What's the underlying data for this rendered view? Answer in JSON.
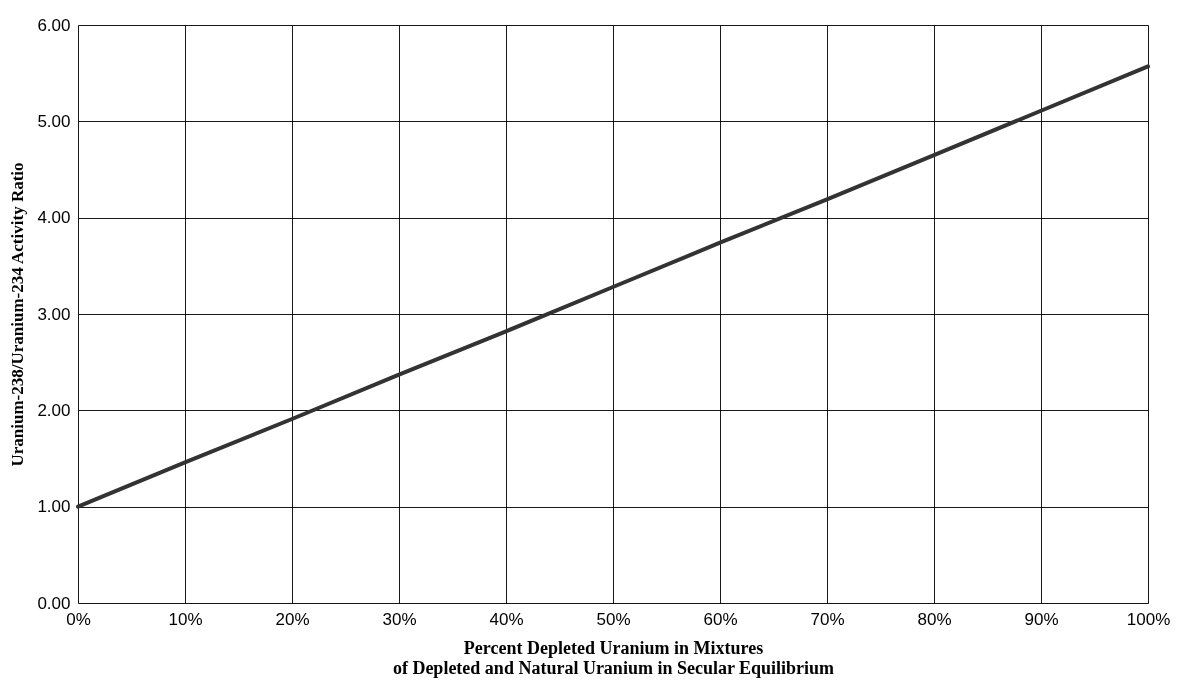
{
  "chart_data": {
    "type": "line",
    "xlabel": "Percent Depleted Uranium in Mixtures\nof Depleted and Natural Uranium in Secular Equilibrium",
    "ylabel": "Uranium-238/Uranium-234 Activity Ratio",
    "x": [
      0,
      10,
      20,
      30,
      40,
      50,
      60,
      70,
      80,
      90,
      100
    ],
    "series": [
      {
        "color": "#333333",
        "values": [
          1.0,
          1.46,
          1.91,
          2.37,
          2.82,
          3.28,
          3.74,
          4.19,
          4.65,
          5.11,
          5.57
        ]
      }
    ],
    "xlim": [
      0,
      100
    ],
    "xticks": [
      {
        "value": 0,
        "label": "0%"
      },
      {
        "value": 10,
        "label": "10%"
      },
      {
        "value": 20,
        "label": "20%"
      },
      {
        "value": 30,
        "label": "30%"
      },
      {
        "value": 40,
        "label": "40%"
      },
      {
        "value": 50,
        "label": "50%"
      },
      {
        "value": 60,
        "label": "60%"
      },
      {
        "value": 70,
        "label": "70%"
      },
      {
        "value": 80,
        "label": "80%"
      },
      {
        "value": 90,
        "label": "90%"
      },
      {
        "value": 100,
        "label": "100%"
      }
    ],
    "ylim": [
      0,
      6
    ],
    "yticks": [
      {
        "value": 0,
        "label": "0.00"
      },
      {
        "value": 1,
        "label": "1.00"
      },
      {
        "value": 2,
        "label": "2.00"
      },
      {
        "value": 3,
        "label": "3.00"
      },
      {
        "value": 4,
        "label": "4.00"
      },
      {
        "value": 5,
        "label": "5.00"
      },
      {
        "value": 6,
        "label": "6.00"
      }
    ],
    "grid": true,
    "marker": "none",
    "line_style": "solid"
  }
}
